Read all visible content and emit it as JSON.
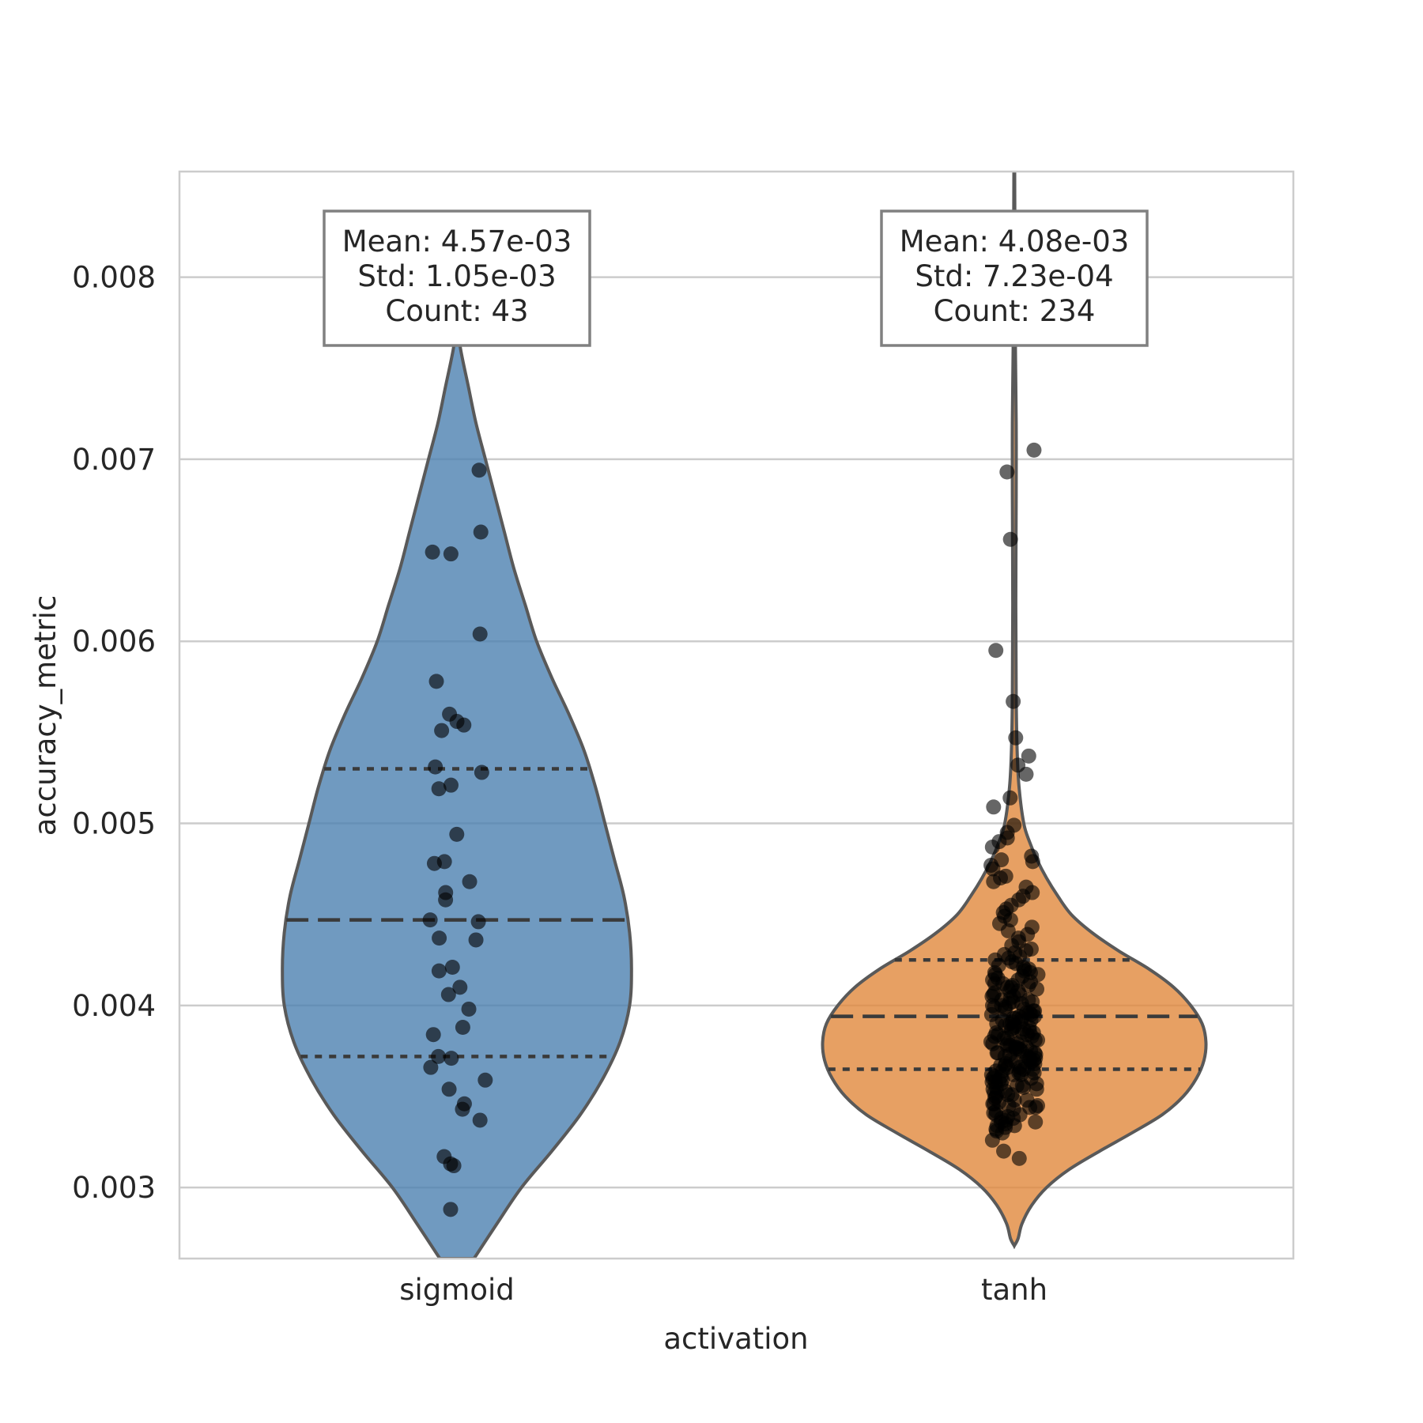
{
  "chart_data": {
    "type": "violin",
    "title": "",
    "xlabel": "activation",
    "ylabel": "accuracy_metric",
    "ylim": [
      0.00261,
      0.00858
    ],
    "yticks": [
      "0.003",
      "0.004",
      "0.005",
      "0.006",
      "0.007",
      "0.008"
    ],
    "ytick_values": [
      0.003,
      0.004,
      0.005,
      0.006,
      0.007,
      0.008
    ],
    "grid": true,
    "categories": [
      "sigmoid",
      "tanh"
    ],
    "series": [
      {
        "category": "sigmoid",
        "color": "#4c81b0",
        "stats_lines": [
          "Mean: 4.57e-03",
          "Std: 1.05e-03",
          "Count: 43"
        ],
        "mean": 0.00457,
        "std": 0.00105,
        "count": 43,
        "q1": 0.00372,
        "median": 0.00447,
        "q3": 0.0053,
        "density": [
          [
            0.00261,
            0.09
          ],
          [
            0.0028,
            0.21
          ],
          [
            0.003,
            0.34
          ],
          [
            0.0032,
            0.5
          ],
          [
            0.0034,
            0.65
          ],
          [
            0.0036,
            0.77
          ],
          [
            0.0038,
            0.86
          ],
          [
            0.004,
            0.91
          ],
          [
            0.0042,
            0.92
          ],
          [
            0.0044,
            0.91
          ],
          [
            0.0046,
            0.88
          ],
          [
            0.0048,
            0.83
          ],
          [
            0.005,
            0.78
          ],
          [
            0.0052,
            0.73
          ],
          [
            0.0054,
            0.67
          ],
          [
            0.0056,
            0.59
          ],
          [
            0.0058,
            0.5
          ],
          [
            0.006,
            0.42
          ],
          [
            0.0062,
            0.36
          ],
          [
            0.0064,
            0.3
          ],
          [
            0.0066,
            0.25
          ],
          [
            0.0068,
            0.2
          ],
          [
            0.007,
            0.15
          ],
          [
            0.0072,
            0.1
          ],
          [
            0.0074,
            0.06
          ],
          [
            0.0076,
            0.02
          ],
          [
            0.00775,
            0.0
          ]
        ],
        "points": [
          0.00694,
          0.0066,
          0.00649,
          0.00648,
          0.00604,
          0.00578,
          0.0056,
          0.00556,
          0.00554,
          0.00551,
          0.00531,
          0.00528,
          0.00521,
          0.00519,
          0.00494,
          0.00479,
          0.00478,
          0.00468,
          0.00462,
          0.00458,
          0.00447,
          0.00446,
          0.00437,
          0.00436,
          0.00421,
          0.00419,
          0.0041,
          0.00406,
          0.00398,
          0.00388,
          0.00384,
          0.00372,
          0.00371,
          0.00366,
          0.00359,
          0.00354,
          0.00346,
          0.00343,
          0.00337,
          0.00317,
          0.00313,
          0.00312,
          0.00288
        ]
      },
      {
        "category": "tanh",
        "color": "#e1883c",
        "stats_lines": [
          "Mean: 4.08e-03",
          "Std: 7.23e-04",
          "Count: 234"
        ],
        "mean": 0.00408,
        "std": 0.000723,
        "count": 234,
        "q1": 0.00365,
        "median": 0.00394,
        "q3": 0.00425,
        "density": [
          [
            0.00268,
            0.0
          ],
          [
            0.00272,
            0.02
          ],
          [
            0.0028,
            0.04
          ],
          [
            0.0029,
            0.09
          ],
          [
            0.003,
            0.17
          ],
          [
            0.0031,
            0.29
          ],
          [
            0.0032,
            0.45
          ],
          [
            0.0033,
            0.62
          ],
          [
            0.0034,
            0.78
          ],
          [
            0.0035,
            0.89
          ],
          [
            0.0036,
            0.96
          ],
          [
            0.0037,
            1.0
          ],
          [
            0.0038,
            1.01
          ],
          [
            0.0039,
            0.99
          ],
          [
            0.004,
            0.93
          ],
          [
            0.0041,
            0.84
          ],
          [
            0.0042,
            0.71
          ],
          [
            0.0043,
            0.55
          ],
          [
            0.0044,
            0.41
          ],
          [
            0.0045,
            0.3
          ],
          [
            0.0046,
            0.23
          ],
          [
            0.0047,
            0.17
          ],
          [
            0.0048,
            0.12
          ],
          [
            0.0049,
            0.08
          ],
          [
            0.005,
            0.05
          ],
          [
            0.0052,
            0.025
          ],
          [
            0.0054,
            0.015
          ],
          [
            0.0057,
            0.01
          ],
          [
            0.0062,
            0.008
          ],
          [
            0.0068,
            0.01
          ],
          [
            0.0072,
            0.01
          ],
          [
            0.0076,
            0.006
          ],
          [
            0.008,
            0.004
          ],
          [
            0.00858,
            0.002
          ]
        ],
        "points": [
          0.00705,
          0.00693,
          0.00656,
          0.00595,
          0.00567,
          0.00547,
          0.00537,
          0.00532,
          0.00527,
          0.00514,
          0.00509,
          0.00499,
          0.00495,
          0.00492,
          0.0049,
          0.00487,
          0.00482,
          0.0048,
          0.00479,
          0.00477,
          0.00475,
          0.00471,
          0.0047,
          0.00468,
          0.00465,
          0.00462,
          0.0046,
          0.00458,
          0.00455,
          0.00453,
          0.00451,
          0.00449,
          0.00447,
          0.00445,
          0.00443,
          0.00441,
          0.00439,
          0.00437,
          0.00435,
          0.00433,
          0.00431,
          0.00429,
          0.00427,
          0.00425,
          0.00423,
          0.00421,
          0.0042,
          0.00418,
          0.00417,
          0.00415,
          0.00414,
          0.00412,
          0.00411,
          0.0041,
          0.00408,
          0.00407,
          0.00406,
          0.00405,
          0.00404,
          0.00402,
          0.00401,
          0.004,
          0.00399,
          0.00398,
          0.00397,
          0.00396,
          0.00395,
          0.00394,
          0.00393,
          0.00392,
          0.00391,
          0.0039,
          0.00389,
          0.00388,
          0.00387,
          0.00386,
          0.00385,
          0.00384,
          0.00383,
          0.00382,
          0.00381,
          0.0038,
          0.00379,
          0.00378,
          0.00377,
          0.00376,
          0.00375,
          0.00374,
          0.00373,
          0.00372,
          0.00371,
          0.0037,
          0.00369,
          0.00368,
          0.00367,
          0.00366,
          0.00365,
          0.00364,
          0.00363,
          0.00362,
          0.00361,
          0.0036,
          0.00358,
          0.00357,
          0.00356,
          0.00354,
          0.00352,
          0.0035,
          0.00348,
          0.00346,
          0.00344,
          0.00342,
          0.0034,
          0.00338,
          0.00336,
          0.00334,
          0.00332,
          0.0033,
          0.00326,
          0.0032,
          0.00316,
          0.0043,
          0.00426,
          0.00419,
          0.00416,
          0.00413,
          0.00409,
          0.00403,
          0.00399,
          0.00396,
          0.00392,
          0.00389,
          0.00385,
          0.00381,
          0.00377,
          0.00374,
          0.0037,
          0.00366,
          0.00362,
          0.00359,
          0.00355,
          0.00351,
          0.00347,
          0.00343,
          0.00339,
          0.00335,
          0.00331,
          0.00424,
          0.00417,
          0.00411,
          0.00405,
          0.00401,
          0.00397,
          0.00393,
          0.00387,
          0.00383,
          0.00379,
          0.00376,
          0.00372,
          0.00368,
          0.00364,
          0.0036,
          0.00356,
          0.00353,
          0.00349,
          0.00345,
          0.00341,
          0.00337,
          0.00333,
          0.00428,
          0.00422,
          0.00414,
          0.00408,
          0.004,
          0.00394,
          0.00388,
          0.00382,
          0.00378,
          0.00373,
          0.00369,
          0.00365,
          0.00361,
          0.00357,
          0.00351,
          0.00346,
          0.0034,
          0.00334,
          0.00418,
          0.0041,
          0.00402,
          0.00395,
          0.0039,
          0.00384,
          0.0038,
          0.00375,
          0.00371,
          0.00367,
          0.00363,
          0.00358,
          0.00354,
          0.00348,
          0.00344,
          0.00336,
          0.0042,
          0.00406,
          0.00398,
          0.00391,
          0.00386,
          0.00379,
          0.00374,
          0.00369,
          0.00364,
          0.00359,
          0.00352,
          0.00345,
          0.00338,
          0.00412,
          0.00403,
          0.00393,
          0.00385,
          0.00377,
          0.0037,
          0.00362,
          0.00355
        ]
      }
    ]
  }
}
